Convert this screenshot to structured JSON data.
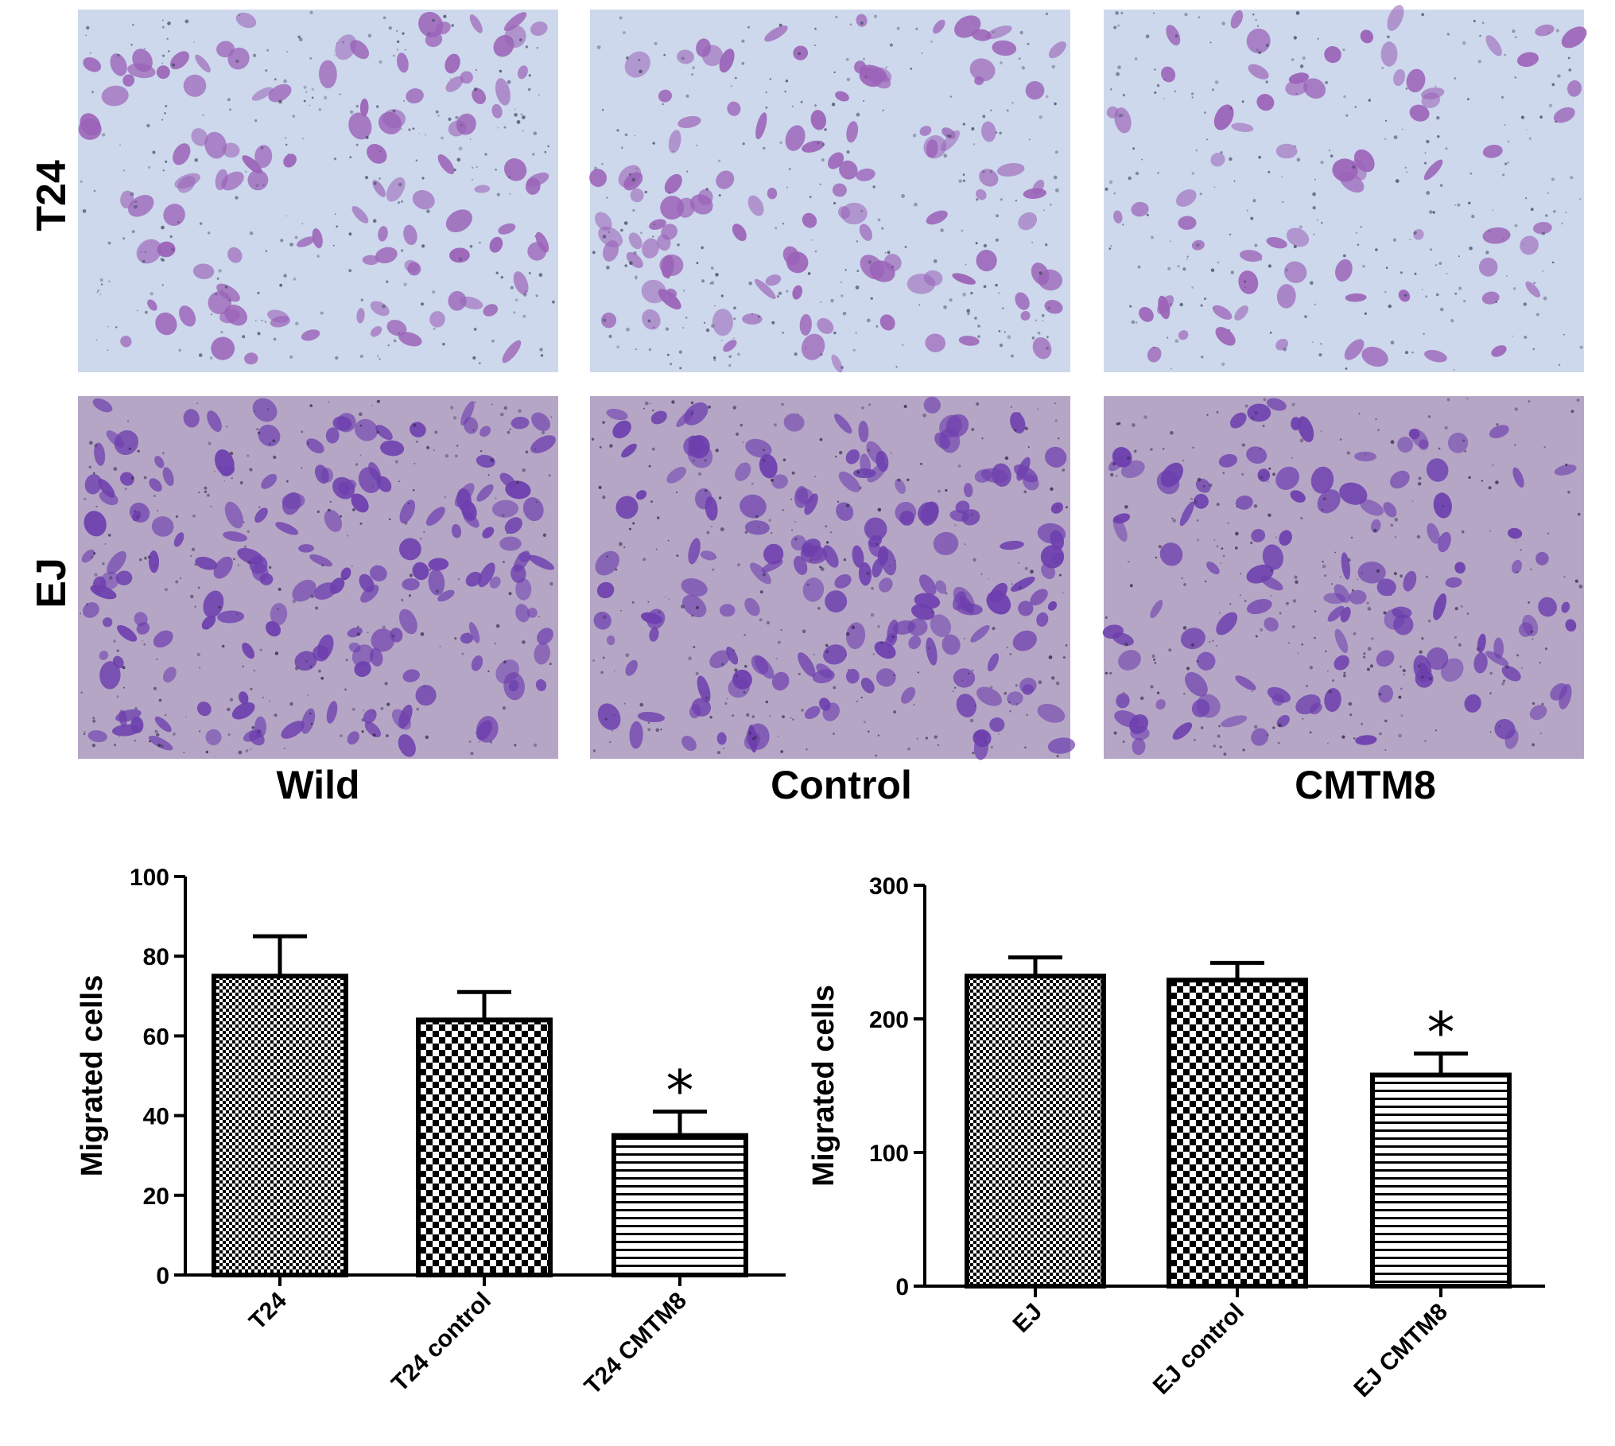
{
  "micrographs": {
    "row_labels": [
      "T24",
      "EJ"
    ],
    "column_labels": [
      "Wild",
      "Control",
      "CMTM8"
    ],
    "colors": {
      "T24": {
        "background": "#cdd8ec",
        "cell": "#9b63b8",
        "speck": "#4a4f6a"
      },
      "EJ": {
        "background": "#b6a6c6",
        "cell": "#6d3fae",
        "speck": "#3b2f52"
      }
    }
  },
  "chart_data": [
    {
      "type": "bar",
      "title": "",
      "xlabel": "",
      "ylabel": "Migrated cells",
      "categories": [
        "T24",
        "T24 control",
        "T24 CMTM8"
      ],
      "values": [
        75,
        64,
        35
      ],
      "errors": [
        10,
        7,
        6
      ],
      "significance": [
        "",
        "",
        "*"
      ],
      "patterns": [
        "fine-check",
        "checker",
        "horizontal-lines"
      ],
      "ylim": [
        0,
        100
      ],
      "yticks": [
        0,
        20,
        40,
        60,
        80,
        100
      ],
      "grid": false,
      "legend": "none"
    },
    {
      "type": "bar",
      "title": "",
      "xlabel": "",
      "ylabel": "Migrated cells",
      "categories": [
        "EJ",
        "EJ control",
        "EJ CMTM8"
      ],
      "values": [
        232,
        229,
        158
      ],
      "errors": [
        14,
        13,
        16
      ],
      "significance": [
        "",
        "",
        "*"
      ],
      "patterns": [
        "fine-check",
        "checker",
        "horizontal-lines"
      ],
      "ylim": [
        0,
        300
      ],
      "yticks": [
        0,
        100,
        200,
        300
      ],
      "grid": false,
      "legend": "none"
    }
  ]
}
